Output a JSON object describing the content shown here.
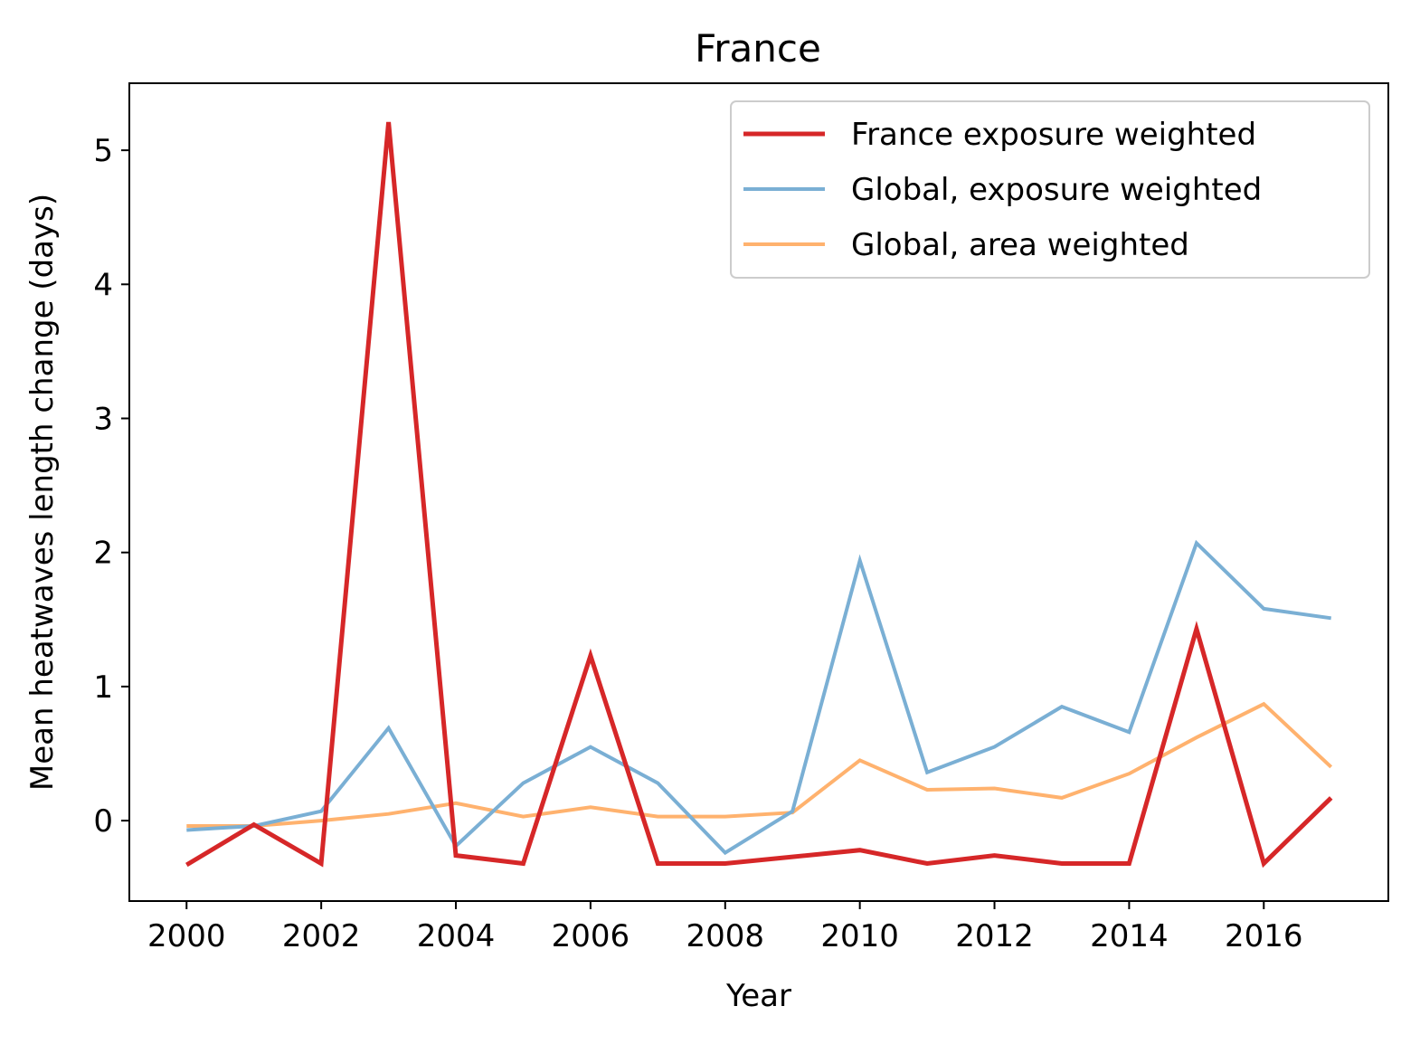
{
  "chart_data": {
    "type": "line",
    "title": "France",
    "xlabel": "Year",
    "ylabel": "Mean heatwaves length change (days)",
    "x": [
      2000,
      2001,
      2002,
      2003,
      2004,
      2005,
      2006,
      2007,
      2008,
      2009,
      2010,
      2011,
      2012,
      2013,
      2014,
      2015,
      2016,
      2017
    ],
    "xlim": [
      1999.15,
      2017.85
    ],
    "ylim": [
      -0.6,
      5.5
    ],
    "x_ticks": [
      2000,
      2002,
      2004,
      2006,
      2008,
      2010,
      2012,
      2014,
      2016
    ],
    "y_ticks": [
      0,
      1,
      2,
      3,
      4,
      5
    ],
    "grid": false,
    "legend_position": "top-right",
    "series": [
      {
        "name": "France exposure weighted",
        "color": "#d62728",
        "values": [
          -0.33,
          -0.03,
          -0.32,
          5.21,
          -0.26,
          -0.32,
          1.23,
          -0.32,
          -0.32,
          -0.27,
          -0.22,
          -0.32,
          -0.26,
          -0.32,
          -0.32,
          1.43,
          -0.32,
          0.17
        ]
      },
      {
        "name": "Global, exposure weighted",
        "color": "#7aafd4",
        "values": [
          -0.07,
          -0.04,
          0.07,
          0.69,
          -0.19,
          0.28,
          0.55,
          0.28,
          -0.24,
          0.07,
          1.94,
          0.36,
          0.55,
          0.85,
          0.66,
          2.07,
          1.58,
          1.51
        ]
      },
      {
        "name": "Global, area weighted",
        "color": "#ffb26e",
        "values": [
          -0.04,
          -0.04,
          0.0,
          0.05,
          0.13,
          0.03,
          0.1,
          0.03,
          0.03,
          0.06,
          0.45,
          0.23,
          0.24,
          0.17,
          0.35,
          0.62,
          0.87,
          0.4
        ]
      }
    ]
  }
}
